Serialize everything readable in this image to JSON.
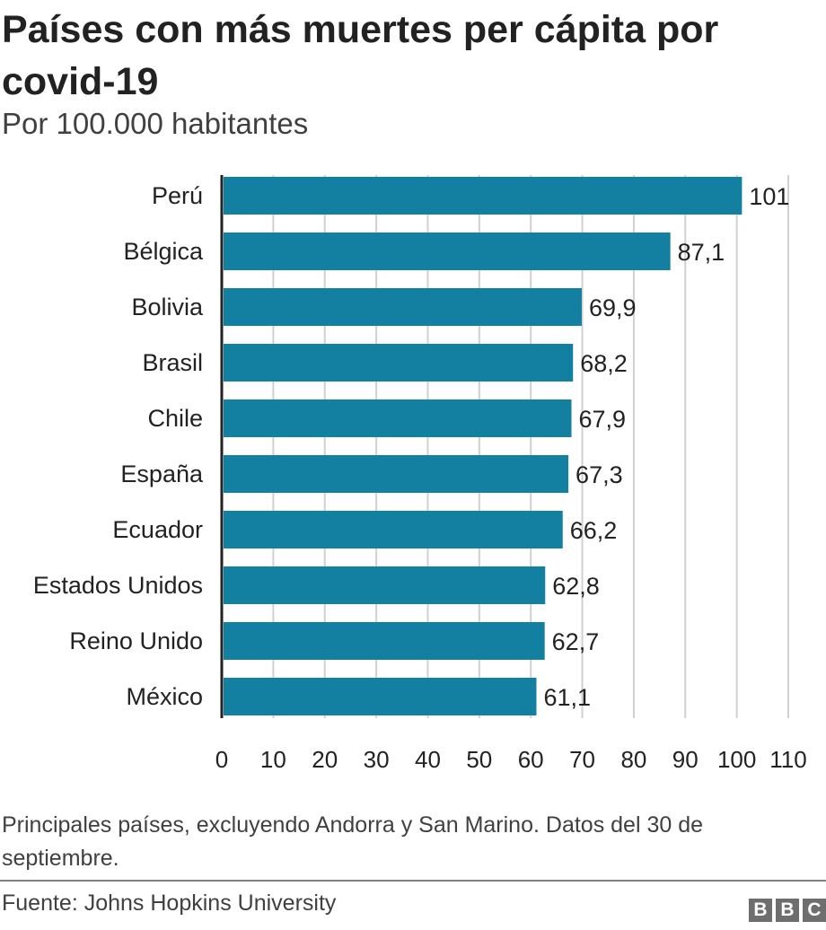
{
  "colors": {
    "bar": "#1380A1",
    "grid": "#d0d0d0",
    "axis": "#222222"
  },
  "chart_data": {
    "type": "bar",
    "orientation": "horizontal",
    "title": "Países con más muertes per cápita por covid-19",
    "subtitle": "Por 100.000 habitantes",
    "categories": [
      "Perú",
      "Bélgica",
      "Bolivia",
      "Brasil",
      "Chile",
      "España",
      "Ecuador",
      "Estados Unidos",
      "Reino Unido",
      "México"
    ],
    "values": [
      101,
      87.1,
      69.9,
      68.2,
      67.9,
      67.3,
      66.2,
      62.8,
      62.7,
      61.1
    ],
    "value_labels": [
      "101",
      "87,1",
      "69,9",
      "68,2",
      "67,9",
      "67,3",
      "66,2",
      "62,8",
      "62,7",
      "61,1"
    ],
    "xlim": [
      0,
      110
    ],
    "xticks": [
      0,
      10,
      20,
      30,
      40,
      50,
      60,
      70,
      80,
      90,
      100,
      110
    ],
    "xlabel": "",
    "ylabel": "",
    "grid": true
  },
  "note": "Principales países, excluyendo Andorra y San Marino. Datos del 30 de septiembre.",
  "source": "Fuente: Johns Hopkins University",
  "logo": [
    "B",
    "B",
    "C"
  ]
}
